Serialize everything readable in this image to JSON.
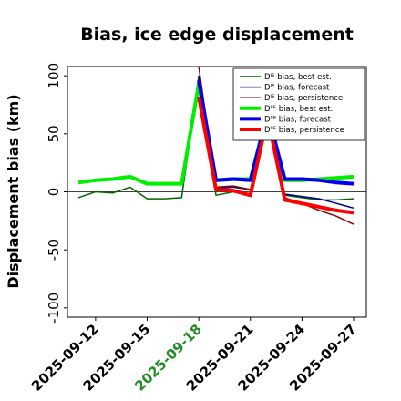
{
  "chart_data": {
    "type": "line",
    "title": "Bias, ice edge displacement",
    "xlabel": "",
    "ylabel": "Displacement bias (km)",
    "ylim": [
      -108,
      108
    ],
    "yticks": [
      -100,
      -50,
      0,
      50,
      100
    ],
    "x": [
      "2025-09-11",
      "2025-09-12",
      "2025-09-13",
      "2025-09-14",
      "2025-09-15",
      "2025-09-16",
      "2025-09-17",
      "2025-09-18",
      "2025-09-19",
      "2025-09-20",
      "2025-09-21",
      "2025-09-22",
      "2025-09-23",
      "2025-09-24",
      "2025-09-25",
      "2025-09-26",
      "2025-09-27"
    ],
    "xticks": [
      "2025-09-12",
      "2025-09-15",
      "2025-09-18",
      "2025-09-21",
      "2025-09-24",
      "2025-09-27"
    ],
    "highlight_tick": "2025-09-18",
    "highlight_color": "#228b22",
    "zero_line": true,
    "legend_position": "top-right",
    "series": [
      {
        "name": "Dᴵᴱ bias, best est.",
        "color": "#006400",
        "width": 1.5,
        "values": [
          -5,
          0,
          -1,
          4,
          -6,
          -6,
          -5,
          100,
          -3,
          0,
          -3,
          60,
          -3,
          -5,
          -7,
          -7,
          -6
        ]
      },
      {
        "name": "Dᴵᴱ bias, forecast",
        "color": "#00008b",
        "width": 1.5,
        "values": [
          null,
          null,
          null,
          null,
          null,
          null,
          null,
          100,
          3,
          4,
          2,
          62,
          -2,
          -4,
          -6,
          -10,
          -14
        ]
      },
      {
        "name": "Dᴵᴱ bias, persistence",
        "color": "#8b0000",
        "width": 1.5,
        "values": [
          null,
          null,
          null,
          null,
          null,
          null,
          null,
          108,
          4,
          5,
          2,
          62,
          -5,
          -10,
          -16,
          -21,
          -28
        ]
      },
      {
        "name": "Dᴵᴵᴱ bias, best est.",
        "color": "#00ee00",
        "width": 4,
        "values": [
          8,
          10,
          11,
          13,
          7,
          7,
          7,
          93,
          10,
          11,
          11,
          68,
          10,
          10,
          11,
          12,
          13
        ]
      },
      {
        "name": "Dᴵᴵᴱ bias, forecast",
        "color": "#0000ee",
        "width": 4,
        "values": [
          null,
          null,
          null,
          null,
          null,
          null,
          null,
          96,
          10,
          11,
          10,
          68,
          11,
          11,
          10,
          8,
          7
        ]
      },
      {
        "name": "Dᴵᴵᴱ bias, persistence",
        "color": "#ff0000",
        "width": 4,
        "values": [
          null,
          null,
          null,
          null,
          null,
          null,
          null,
          82,
          2,
          1,
          -3,
          65,
          -7,
          -10,
          -13,
          -16,
          -18
        ]
      }
    ]
  }
}
